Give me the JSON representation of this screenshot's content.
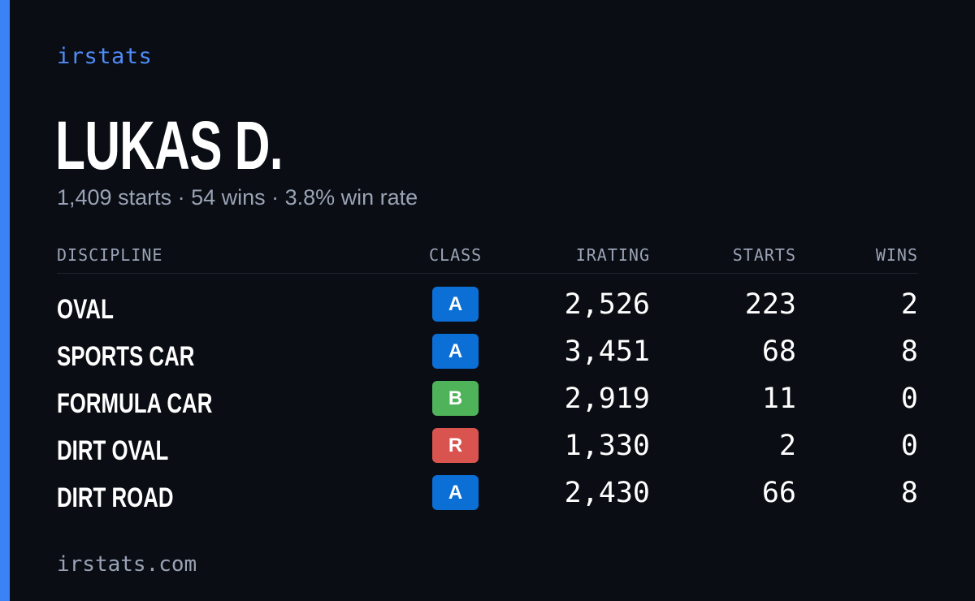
{
  "brand": "irstats",
  "player": {
    "name": "LUKAS D.",
    "summary": "1,409 starts · 54 wins · 3.8% win rate"
  },
  "table": {
    "headers": {
      "discipline": "DISCIPLINE",
      "class": "CLASS",
      "irating": "IRATING",
      "starts": "STARTS",
      "wins": "WINS"
    },
    "rows": [
      {
        "discipline": "OVAL",
        "class": "A",
        "irating": "2,526",
        "starts": "223",
        "wins": "2"
      },
      {
        "discipline": "SPORTS CAR",
        "class": "A",
        "irating": "3,451",
        "starts": "68",
        "wins": "8"
      },
      {
        "discipline": "FORMULA CAR",
        "class": "B",
        "irating": "2,919",
        "starts": "11",
        "wins": "0"
      },
      {
        "discipline": "DIRT OVAL",
        "class": "R",
        "irating": "1,330",
        "starts": "2",
        "wins": "0"
      },
      {
        "discipline": "DIRT ROAD",
        "class": "A",
        "irating": "2,430",
        "starts": "66",
        "wins": "8"
      }
    ]
  },
  "class_colors": {
    "A": "#0b6fd6",
    "B": "#4fb35a",
    "R": "#d9534f"
  },
  "accent_color": "#3b82f6",
  "footer": "irstats.com"
}
